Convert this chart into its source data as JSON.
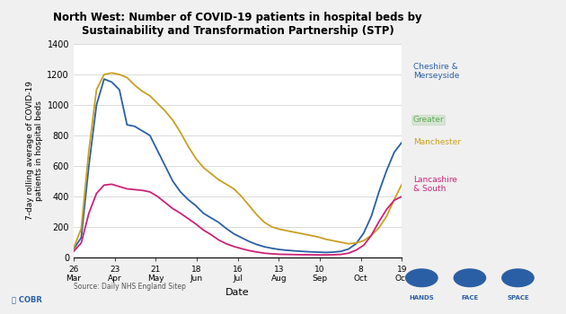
{
  "title": "North West: Number of COVID-19 patients in hospital beds by\nSustainability and Transformation Partnership (STP)",
  "ylabel": "7-day rolling average of COVID-19\npatients in hospital beds",
  "xlabel": "Date",
  "source": "Source: Daily NHS England Sitep",
  "ylim": [
    0,
    1400
  ],
  "yticks": [
    0,
    200,
    400,
    600,
    800,
    1000,
    1200,
    1400
  ],
  "xtick_labels": [
    "26\nMar",
    "23\nApr",
    "21\nMay",
    "18\nJun",
    "16\nJul",
    "13\nAug",
    "10\nSep",
    "8\nOct",
    "19\nOct"
  ],
  "colors": {
    "cheshire": "#2a5fa5",
    "manchester": "#c8a020",
    "lancashire": "#cc2277"
  },
  "bg_color": "#f0f0f0",
  "plot_bg": "#ffffff",
  "cheshire": [
    55,
    130,
    600,
    1000,
    1170,
    1150,
    1100,
    870,
    860,
    830,
    800,
    700,
    600,
    500,
    430,
    380,
    340,
    290,
    260,
    230,
    190,
    155,
    130,
    105,
    85,
    70,
    60,
    52,
    47,
    43,
    40,
    37,
    35,
    33,
    35,
    40,
    55,
    90,
    160,
    270,
    430,
    570,
    690,
    755
  ],
  "manchester": [
    60,
    190,
    700,
    1100,
    1200,
    1210,
    1200,
    1180,
    1130,
    1090,
    1060,
    1010,
    960,
    900,
    820,
    730,
    650,
    590,
    550,
    510,
    480,
    450,
    400,
    340,
    280,
    230,
    200,
    185,
    175,
    165,
    155,
    145,
    135,
    120,
    110,
    100,
    90,
    95,
    110,
    145,
    195,
    270,
    380,
    480
  ],
  "lancashire": [
    40,
    95,
    290,
    420,
    475,
    480,
    465,
    450,
    445,
    440,
    430,
    400,
    360,
    320,
    290,
    255,
    220,
    180,
    150,
    115,
    90,
    72,
    58,
    45,
    36,
    28,
    24,
    21,
    20,
    19,
    18,
    18,
    17,
    17,
    18,
    20,
    28,
    48,
    80,
    145,
    235,
    315,
    375,
    400
  ]
}
